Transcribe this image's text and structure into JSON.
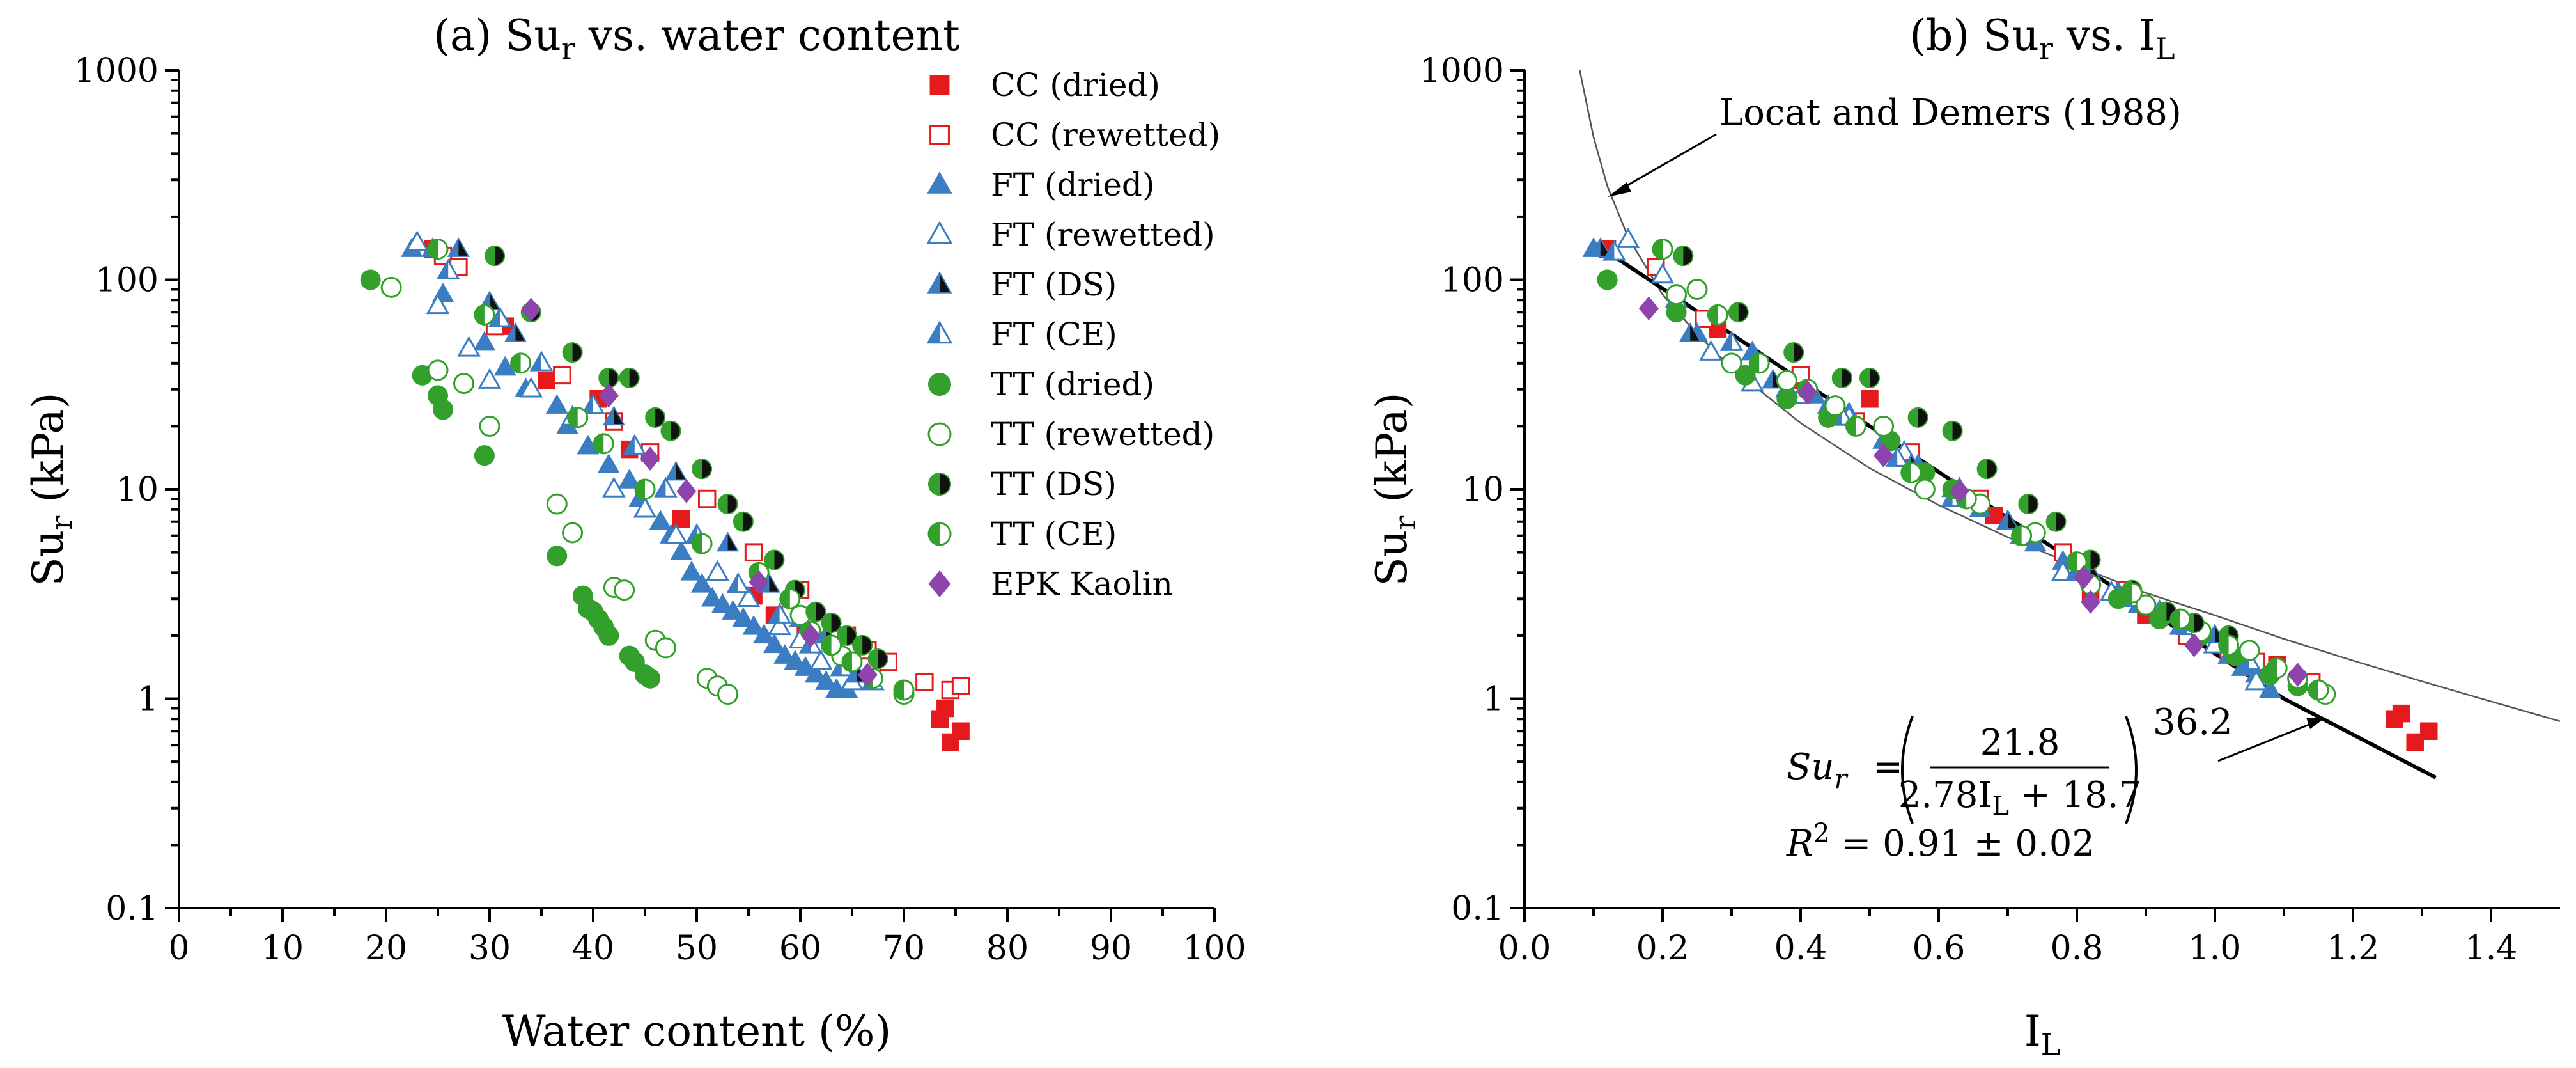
{
  "colors": {
    "CC": "#e41a1c",
    "FT": "#3a7dc3",
    "TT": "#33a02c",
    "dark": "#111111",
    "EPK": "#8e44ad"
  },
  "chart_data": [
    {
      "type": "scatter",
      "title": "(a) Su",
      "title_sub": "r",
      "title_rest": " vs. water content",
      "xlabel": "Water content (%)",
      "ylabel": "Su",
      "ylabel_sub": "r",
      "ylabel_rest": " (kPa)",
      "xlim": [
        0,
        100
      ],
      "ylim": [
        0.1,
        1000
      ],
      "yscale": "log",
      "xticks": [
        0,
        10,
        20,
        30,
        40,
        50,
        60,
        70,
        80,
        90,
        100
      ],
      "xtick_labels": [
        "0",
        "10",
        "20",
        "30",
        "40",
        "50",
        "60",
        "70",
        "80",
        "90",
        "100"
      ],
      "yticks": [
        0.1,
        1,
        10,
        100,
        1000
      ],
      "ytick_labels": [
        "0.1",
        "1",
        "10",
        "100",
        "1000"
      ],
      "legend_position": "top-right",
      "series": [
        {
          "name": "CC (dried)",
          "marker": "square",
          "fill": "filled",
          "color_key": "CC",
          "x": [
            24.5,
            31.5,
            35.5,
            40.5,
            43.5,
            48.5,
            55.5,
            57.5,
            60.5,
            73.5,
            74.0,
            74.5,
            75.5
          ],
          "y": [
            140,
            60,
            33,
            27,
            15.5,
            7.2,
            3.1,
            2.5,
            2.0,
            0.8,
            0.9,
            0.62,
            0.7
          ]
        },
        {
          "name": "CC (rewetted)",
          "marker": "square",
          "fill": "open",
          "color_key": "CC",
          "x": [
            25.5,
            27.0,
            30.5,
            37.0,
            42.0,
            45.5,
            51.0,
            55.5,
            60.0,
            64.5,
            66.5,
            68.5,
            72.0,
            74.5,
            75.5
          ],
          "y": [
            130,
            115,
            60,
            35,
            21,
            15,
            9,
            5,
            3.3,
            2.0,
            1.7,
            1.5,
            1.2,
            1.1,
            1.15
          ]
        },
        {
          "name": "FT (dried)",
          "marker": "triangle",
          "fill": "filled",
          "color_key": "FT",
          "x": [
            22.5,
            25.5,
            29.5,
            31.5,
            33.5,
            36.5,
            37.5,
            39.5,
            41.5,
            43.5,
            44.5,
            46.5,
            47.5,
            48.5,
            49.5,
            50.5,
            51.5,
            52.5,
            53.5,
            54.5,
            55.5,
            56.5,
            57.5,
            58.5,
            59.5,
            60.5,
            61.5,
            62.5,
            63.5,
            64.5
          ],
          "y": [
            140,
            85,
            50,
            38,
            30,
            25,
            20,
            16,
            13,
            11,
            9,
            7,
            6,
            5,
            4,
            3.5,
            3,
            2.8,
            2.6,
            2.4,
            2.2,
            2.0,
            1.8,
            1.6,
            1.5,
            1.4,
            1.3,
            1.2,
            1.1,
            1.1
          ]
        },
        {
          "name": "FT (rewetted)",
          "marker": "triangle",
          "fill": "open",
          "color_key": "FT",
          "x": [
            23,
            25,
            28,
            30,
            34,
            38,
            42,
            45,
            48,
            52,
            55,
            58,
            60,
            62,
            65
          ],
          "y": [
            150,
            75,
            47,
            33,
            30,
            22,
            10,
            8,
            6,
            4,
            3,
            2.2,
            1.9,
            1.5,
            1.2
          ]
        },
        {
          "name": "FT (DS)",
          "marker": "triangle",
          "fill": "dark",
          "color_key": "FT",
          "x": [
            24.5,
            27,
            30,
            32.5,
            42,
            48,
            53,
            57,
            60,
            62.5,
            65.5
          ],
          "y": [
            140,
            140,
            78,
            55,
            22,
            12,
            5.5,
            3.5,
            2.4,
            2.0,
            1.3
          ]
        },
        {
          "name": "FT (CE)",
          "marker": "triangle",
          "fill": "half",
          "color_key": "FT",
          "x": [
            26,
            31,
            35,
            40,
            44,
            47,
            50,
            54,
            58,
            61,
            64,
            67
          ],
          "y": [
            110,
            65,
            40,
            25,
            16,
            10,
            6,
            3.5,
            2.5,
            1.8,
            1.4,
            1.2
          ]
        },
        {
          "name": "TT (dried)",
          "marker": "circle",
          "fill": "filled",
          "color_key": "TT",
          "x": [
            18.5,
            23.5,
            25.0,
            25.5,
            29.5,
            36.5,
            39.0,
            39.5,
            40.0,
            40.5,
            41.0,
            41.5,
            43.5,
            44.0,
            45.0,
            45.5
          ],
          "y": [
            100,
            35,
            28,
            24,
            14.5,
            4.8,
            3.1,
            2.7,
            2.6,
            2.4,
            2.2,
            2.0,
            1.6,
            1.5,
            1.3,
            1.25
          ]
        },
        {
          "name": "TT (rewetted)",
          "marker": "circle",
          "fill": "open",
          "color_key": "TT",
          "x": [
            20.5,
            25,
            27.5,
            30,
            36.5,
            38,
            42,
            43,
            46,
            47,
            51,
            52,
            53,
            60,
            64,
            70
          ],
          "y": [
            92,
            37,
            32,
            20,
            8.5,
            6.2,
            3.4,
            3.3,
            1.9,
            1.75,
            1.25,
            1.15,
            1.05,
            2.5,
            1.6,
            1.05
          ]
        },
        {
          "name": "TT (DS)",
          "marker": "circle",
          "fill": "dark",
          "color_key": "TT",
          "x": [
            30.5,
            34,
            38,
            41.5,
            43.5,
            46,
            47.5,
            50.5,
            53,
            54.5,
            57.5,
            59.5,
            61.5,
            63,
            64.5,
            66,
            67.5
          ],
          "y": [
            130,
            70,
            45,
            34,
            34,
            22,
            19,
            12.5,
            8.5,
            7,
            4.6,
            3.3,
            2.6,
            2.3,
            2.0,
            1.8,
            1.55
          ]
        },
        {
          "name": "TT (CE)",
          "marker": "circle",
          "fill": "half",
          "color_key": "TT",
          "x": [
            25,
            29.5,
            33,
            38.5,
            41,
            45,
            50.5,
            56,
            59,
            61,
            63,
            65,
            67,
            70
          ],
          "y": [
            140,
            68,
            40,
            22,
            16.5,
            10,
            5.5,
            4,
            3.0,
            2.1,
            1.8,
            1.5,
            1.25,
            1.1
          ]
        },
        {
          "name": "EPK Kaolin",
          "marker": "diamond",
          "fill": "filled",
          "color_key": "EPK",
          "x": [
            34,
            41.5,
            45.5,
            49,
            56,
            61,
            66.5
          ],
          "y": [
            72,
            28,
            14,
            9.8,
            3.6,
            2.0,
            1.3
          ]
        }
      ]
    },
    {
      "type": "scatter",
      "title": "(b) Su",
      "title_sub": "r",
      "title_rest": " vs. I",
      "title_sub2": "L",
      "xlabel": "I",
      "xlabel_sub": "L",
      "ylabel": "Su",
      "ylabel_sub": "r",
      "ylabel_rest": " (kPa)",
      "xlim": [
        0,
        1.5
      ],
      "ylim": [
        0.1,
        1000
      ],
      "yscale": "log",
      "xticks": [
        0,
        0.2,
        0.4,
        0.6,
        0.8,
        1.0,
        1.2,
        1.4
      ],
      "xtick_labels": [
        "0.0",
        "0.2",
        "0.4",
        "0.6",
        "0.8",
        "1.0",
        "1.2",
        "1.4"
      ],
      "yticks": [
        0.1,
        1,
        10,
        100,
        1000
      ],
      "ytick_labels": [
        "0.1",
        "1",
        "10",
        "100",
        "1000"
      ],
      "series": [
        {
          "name": "CC (dried)",
          "marker": "square",
          "fill": "filled",
          "color_key": "CC",
          "x": [
            0.12,
            0.28,
            0.39,
            0.5,
            0.55,
            0.68,
            0.82,
            0.9,
            1.09,
            1.26,
            1.27,
            1.29,
            1.31
          ],
          "y": [
            140,
            58,
            33,
            27,
            14,
            7.5,
            3.2,
            2.5,
            1.45,
            0.8,
            0.85,
            0.62,
            0.7
          ]
        },
        {
          "name": "CC (rewetted)",
          "marker": "square",
          "fill": "open",
          "color_key": "CC",
          "x": [
            0.19,
            0.26,
            0.4,
            0.48,
            0.56,
            0.66,
            0.78,
            0.87,
            0.96,
            1.02,
            1.06,
            1.14
          ],
          "y": [
            115,
            65,
            35,
            21,
            15,
            9,
            5,
            3.3,
            2.0,
            1.7,
            1.5,
            1.2
          ]
        },
        {
          "name": "FT (dried)",
          "marker": "triangle",
          "fill": "filled",
          "color_key": "FT",
          "x": [
            0.1,
            0.25,
            0.33,
            0.36,
            0.42,
            0.47,
            0.52,
            0.57,
            0.62,
            0.66,
            0.7,
            0.74,
            0.78,
            0.82,
            0.86,
            0.89,
            0.92,
            0.95,
            0.98,
            1.0,
            1.02,
            1.04,
            1.06,
            1.08
          ],
          "y": [
            140,
            55,
            45,
            33,
            28,
            23,
            17,
            13,
            10,
            8,
            7,
            5.5,
            4.5,
            3.8,
            3.2,
            2.8,
            2.5,
            2.2,
            2.0,
            1.8,
            1.6,
            1.4,
            1.3,
            1.1
          ]
        },
        {
          "name": "FT (rewetted)",
          "marker": "triangle",
          "fill": "open",
          "color_key": "FT",
          "x": [
            0.15,
            0.2,
            0.27,
            0.33,
            0.4,
            0.47,
            0.55,
            0.63,
            0.7,
            0.78,
            0.85,
            0.92,
            1.0,
            1.06
          ],
          "y": [
            155,
            105,
            45,
            32,
            28,
            22,
            15,
            10,
            7,
            4,
            3.2,
            2.6,
            1.8,
            1.2
          ]
        },
        {
          "name": "FT (DS)",
          "marker": "triangle",
          "fill": "dark",
          "color_key": "FT",
          "x": [
            0.11,
            0.24,
            0.36,
            0.44,
            0.56,
            0.7,
            0.82,
            0.92,
            1.0
          ],
          "y": [
            140,
            55,
            33,
            25,
            13,
            7,
            4,
            2.5,
            2.0
          ]
        },
        {
          "name": "FT (CE)",
          "marker": "triangle",
          "fill": "half",
          "color_key": "FT",
          "x": [
            0.13,
            0.22,
            0.3,
            0.38,
            0.46,
            0.54,
            0.62,
            0.72,
            0.8,
            0.88,
            0.96,
            1.05
          ],
          "y": [
            135,
            80,
            50,
            30,
            22,
            14,
            9,
            6,
            4,
            3,
            2.2,
            1.5
          ]
        },
        {
          "name": "TT (dried)",
          "marker": "circle",
          "fill": "filled",
          "color_key": "TT",
          "x": [
            0.12,
            0.22,
            0.32,
            0.38,
            0.44,
            0.53,
            0.58,
            0.62,
            0.72,
            0.8,
            0.86,
            0.92,
            0.98,
            1.03,
            1.08,
            1.12
          ],
          "y": [
            100,
            70,
            35,
            27,
            22,
            17,
            12,
            10,
            6,
            4.5,
            3.0,
            2.4,
            2.0,
            1.6,
            1.3,
            1.15
          ]
        },
        {
          "name": "TT (rewetted)",
          "marker": "circle",
          "fill": "open",
          "color_key": "TT",
          "x": [
            0.22,
            0.25,
            0.3,
            0.38,
            0.45,
            0.52,
            0.58,
            0.66,
            0.74,
            0.82,
            0.9,
            0.98,
            1.05,
            1.12,
            1.16
          ],
          "y": [
            85,
            90,
            40,
            33,
            25,
            20,
            10,
            8.5,
            6.2,
            3.5,
            2.8,
            2.1,
            1.7,
            1.25,
            1.05
          ]
        },
        {
          "name": "TT (DS)",
          "marker": "circle",
          "fill": "dark",
          "color_key": "TT",
          "x": [
            0.23,
            0.31,
            0.39,
            0.46,
            0.5,
            0.57,
            0.62,
            0.67,
            0.73,
            0.77,
            0.82,
            0.88,
            0.93,
            0.97,
            1.02
          ],
          "y": [
            130,
            70,
            45,
            34,
            34,
            22,
            19,
            12.5,
            8.5,
            7,
            4.6,
            3.3,
            2.6,
            2.3,
            2.0
          ]
        },
        {
          "name": "TT (CE)",
          "marker": "circle",
          "fill": "half",
          "color_key": "TT",
          "x": [
            0.2,
            0.28,
            0.34,
            0.41,
            0.48,
            0.56,
            0.64,
            0.72,
            0.8,
            0.88,
            0.95,
            1.02,
            1.09,
            1.15
          ],
          "y": [
            140,
            68,
            40,
            30,
            20,
            12,
            9,
            6,
            4.5,
            3.2,
            2.4,
            1.8,
            1.4,
            1.1
          ]
        },
        {
          "name": "EPK Kaolin",
          "marker": "diamond",
          "fill": "filled",
          "color_key": "EPK",
          "x": [
            0.18,
            0.41,
            0.52,
            0.63,
            0.81,
            0.82,
            0.97,
            1.12
          ],
          "y": [
            73,
            29,
            14.5,
            9.8,
            3.8,
            2.9,
            1.8,
            1.3
          ]
        }
      ],
      "curves": [
        {
          "name": "Locat and Demers (1988)",
          "style": "thin-gray",
          "x": [
            0.08,
            0.1,
            0.12,
            0.15,
            0.2,
            0.25,
            0.3,
            0.4,
            0.5,
            0.6,
            0.7,
            0.8,
            0.9,
            1.0,
            1.1,
            1.2,
            1.3,
            1.4,
            1.5
          ],
          "y": [
            1000,
            480,
            280,
            160,
            85,
            55,
            38,
            20.7,
            12.6,
            8.4,
            5.9,
            4.3,
            3.2,
            2.5,
            1.93,
            1.52,
            1.21,
            0.97,
            0.78
          ]
        },
        {
          "name": "Fit",
          "style": "thick-black",
          "x": [
            0.1,
            0.3,
            0.5,
            0.7,
            0.9,
            1.1,
            1.32
          ],
          "y": [
            150,
            55,
            20,
            7.3,
            2.7,
            1.0,
            0.42
          ]
        }
      ],
      "annotations": {
        "locat_label": "Locat and Demers (1988)",
        "eq_lhs": "Su",
        "eq_lhs_sub": "r",
        "eq_equals": "=",
        "eq_numerator": "21.8",
        "eq_den_coef": "2.78I",
        "eq_den_sub": "L",
        "eq_den_const": " + 18.7",
        "eq_exponent": "36.2",
        "r2_lhs": "R",
        "r2_sup": "2",
        "r2_rhs": " = 0.91 ± 0.02"
      }
    }
  ]
}
